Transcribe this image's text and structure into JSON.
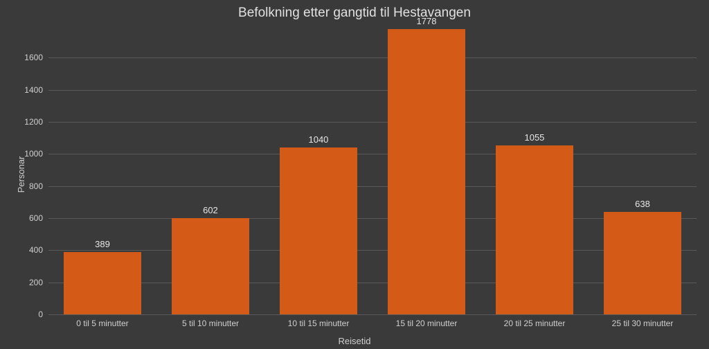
{
  "chart": {
    "type": "bar",
    "title": "Befolkning etter gangtid til Hestavangen",
    "title_fontsize": 19,
    "ylabel": "Personar",
    "xlabel": "Reisetid",
    "label_fontsize": 13,
    "tick_fontsize": 12,
    "value_label_fontsize": 13,
    "background_color": "#3a3a3a",
    "grid_color": "#5a5a5a",
    "text_color": "#d9d9d9",
    "bar_color": "#d35a17",
    "bar_width_ratio": 0.72,
    "ylim": [
      0,
      1778
    ],
    "ytick_step": 200,
    "yticks": [
      0,
      200,
      400,
      600,
      800,
      1000,
      1200,
      1400,
      1600
    ],
    "categories": [
      "0 til 5 minutter",
      "5 til 10 minutter",
      "10 til 15 minutter",
      "15 til 20 minutter",
      "20 til 25 minutter",
      "25 til 30 minutter"
    ],
    "values": [
      389,
      602,
      1040,
      1778,
      1055,
      638
    ]
  }
}
